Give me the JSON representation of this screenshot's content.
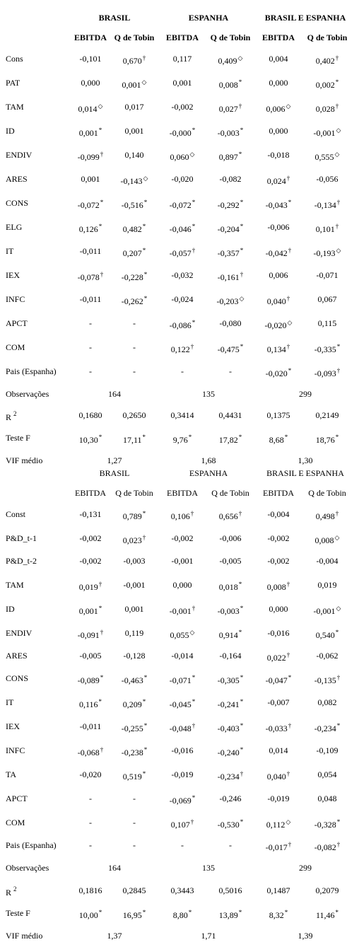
{
  "tables": [
    {
      "id": "t1",
      "bold_header": true,
      "groups": [
        "BRASIL",
        "ESPANHA",
        "BRASIL E ESPANHA"
      ],
      "cols": [
        "EBITDA",
        "Q de Tobin",
        "EBITDA",
        "Q de Tobin",
        "EBITDA",
        "Q de Tobin"
      ],
      "rows": [
        {
          "label": "Cons",
          "cells": [
            [
              "-0,101",
              ""
            ],
            [
              "0,670",
              "†"
            ],
            [
              "0,117",
              ""
            ],
            [
              "0,409",
              "◇"
            ],
            [
              "0,004",
              ""
            ],
            [
              "0,402",
              "†"
            ]
          ]
        },
        {
          "label": "PAT",
          "cells": [
            [
              "0,000",
              ""
            ],
            [
              "0,001",
              "◇"
            ],
            [
              "0,001",
              ""
            ],
            [
              "0,008",
              "*"
            ],
            [
              "0,000",
              ""
            ],
            [
              "0,002",
              "*"
            ]
          ]
        },
        {
          "label": "TAM",
          "cells": [
            [
              "0,014",
              "◇"
            ],
            [
              "0,017",
              ""
            ],
            [
              "-0,002",
              ""
            ],
            [
              "0,027",
              "†"
            ],
            [
              "0,006",
              "◇"
            ],
            [
              "0,028",
              "†"
            ]
          ]
        },
        {
          "label": "ID",
          "cells": [
            [
              "0,001",
              "*"
            ],
            [
              "0,001",
              ""
            ],
            [
              "-0,000",
              "*"
            ],
            [
              "-0,003",
              "*"
            ],
            [
              "0,000",
              ""
            ],
            [
              "-0,001",
              "◇"
            ]
          ]
        },
        {
          "label": "ENDIV",
          "cells": [
            [
              "-0,099",
              "†"
            ],
            [
              "0,140",
              ""
            ],
            [
              "0,060",
              "◇"
            ],
            [
              "0,897",
              "*"
            ],
            [
              "-0,018",
              ""
            ],
            [
              "0,555",
              "◇"
            ]
          ]
        },
        {
          "label": "ARES",
          "cells": [
            [
              "0,001",
              ""
            ],
            [
              "-0,143",
              "◇"
            ],
            [
              "-0,020",
              ""
            ],
            [
              "-0,082",
              ""
            ],
            [
              "0,024",
              "†"
            ],
            [
              "-0,056",
              ""
            ]
          ]
        },
        {
          "label": "CONS",
          "cells": [
            [
              "-0,072",
              "*"
            ],
            [
              "-0,516",
              "*"
            ],
            [
              "-0,072",
              "*"
            ],
            [
              "-0,292",
              "*"
            ],
            [
              "-0,043",
              "*"
            ],
            [
              "-0,134",
              "†"
            ]
          ]
        },
        {
          "label": "ELG",
          "cells": [
            [
              "0,126",
              "*"
            ],
            [
              "0,482",
              "*"
            ],
            [
              "-0,046",
              "*"
            ],
            [
              "-0,204",
              "*"
            ],
            [
              "-0,006",
              ""
            ],
            [
              "0,101",
              "†"
            ]
          ]
        },
        {
          "label": "IT",
          "cells": [
            [
              "-0,011",
              ""
            ],
            [
              "0,207",
              "*"
            ],
            [
              "-0,057",
              "†"
            ],
            [
              "-0,357",
              "*"
            ],
            [
              "-0,042",
              "†"
            ],
            [
              "-0,193",
              "◇"
            ]
          ]
        },
        {
          "label": "IEX",
          "cells": [
            [
              "-0,078",
              "†"
            ],
            [
              "-0,228",
              "*"
            ],
            [
              "-0,032",
              ""
            ],
            [
              "-0,161",
              "†"
            ],
            [
              "0,006",
              ""
            ],
            [
              "-0,071",
              ""
            ]
          ]
        },
        {
          "label": "INFC",
          "cells": [
            [
              "-0,011",
              ""
            ],
            [
              "-0,262",
              "*"
            ],
            [
              "-0,024",
              ""
            ],
            [
              "-0,203",
              "◇"
            ],
            [
              "0,040",
              "†"
            ],
            [
              "0,067",
              ""
            ]
          ]
        },
        {
          "label": "APCT",
          "cells": [
            [
              "-",
              ""
            ],
            [
              "-",
              ""
            ],
            [
              "-0,086",
              "*"
            ],
            [
              "-0,080",
              ""
            ],
            [
              "-0,020",
              "◇"
            ],
            [
              "0,115",
              ""
            ]
          ]
        },
        {
          "label": "COM",
          "cells": [
            [
              "-",
              ""
            ],
            [
              "-",
              ""
            ],
            [
              "0,122",
              "†"
            ],
            [
              "-0,475",
              "*"
            ],
            [
              "0,134",
              "†"
            ],
            [
              "-0,335",
              "*"
            ]
          ]
        },
        {
          "label": "Pais (Espanha)",
          "cells": [
            [
              "-",
              ""
            ],
            [
              "-",
              ""
            ],
            [
              "-",
              ""
            ],
            [
              "-",
              ""
            ],
            [
              "-0,020",
              "*"
            ],
            [
              "-0,093",
              "†"
            ]
          ]
        }
      ],
      "obs": {
        "label": "Observações",
        "values": [
          "164",
          "135",
          "299"
        ]
      },
      "r2": {
        "label": "R",
        "sup": "2",
        "values": [
          "0,1680",
          "0,2650",
          "0,3414",
          "0,4431",
          "0,1375",
          "0,2149"
        ]
      },
      "ftest": {
        "label": "Teste F",
        "cells": [
          [
            "10,30",
            "*"
          ],
          [
            "17,11",
            "*"
          ],
          [
            "9,76",
            "*"
          ],
          [
            "17,82",
            "*"
          ],
          [
            "8,68",
            "*"
          ],
          [
            "18,76",
            "*"
          ]
        ]
      },
      "vif": {
        "label": "VIF médio",
        "values": [
          "1,27",
          "1,68",
          "1,30"
        ]
      }
    },
    {
      "id": "t2",
      "bold_header": false,
      "groups": [
        "BRASIL",
        "ESPANHA",
        "BRASIL E ESPANHA"
      ],
      "cols": [
        "EBITDA",
        "Q de Tobin",
        "EBITDA",
        "Q de Tobin",
        "EBITDA",
        "Q de Tobin"
      ],
      "rows": [
        {
          "label": "Const",
          "cells": [
            [
              "-0,131",
              ""
            ],
            [
              "0,789",
              "*"
            ],
            [
              "0,106",
              "†"
            ],
            [
              "0,656",
              "†"
            ],
            [
              "-0,004",
              ""
            ],
            [
              "0,498",
              "†"
            ]
          ]
        },
        {
          "label": "P&D_t-1",
          "cells": [
            [
              "-0,002",
              ""
            ],
            [
              "0,023",
              "†"
            ],
            [
              "-0,002",
              ""
            ],
            [
              "-0,006",
              ""
            ],
            [
              "-0,002",
              ""
            ],
            [
              "0,008",
              "◇"
            ]
          ]
        },
        {
          "label": "P&D_t-2",
          "cells": [
            [
              "-0,002",
              ""
            ],
            [
              "-0,003",
              ""
            ],
            [
              "-0,001",
              ""
            ],
            [
              "-0,005",
              ""
            ],
            [
              "-0,002",
              ""
            ],
            [
              "-0,004",
              ""
            ]
          ]
        },
        {
          "label": "TAM",
          "cells": [
            [
              "0,019",
              "†"
            ],
            [
              "-0,001",
              ""
            ],
            [
              "0,000",
              ""
            ],
            [
              "0,018",
              "*"
            ],
            [
              "0,008",
              "†"
            ],
            [
              "0,019",
              ""
            ]
          ]
        },
        {
          "label": "ID",
          "cells": [
            [
              "0,001",
              "*"
            ],
            [
              "0,001",
              ""
            ],
            [
              "-0,001",
              "†"
            ],
            [
              "-0,003",
              "*"
            ],
            [
              "0,000",
              ""
            ],
            [
              "-0,001",
              "◇"
            ]
          ]
        },
        {
          "label": "ENDIV",
          "cells": [
            [
              "-0,091",
              "†"
            ],
            [
              "0,119",
              ""
            ],
            [
              "0,055",
              "◇"
            ],
            [
              "0,914",
              "*"
            ],
            [
              "-0,016",
              ""
            ],
            [
              "0,540",
              "*"
            ]
          ]
        },
        {
          "label": "ARES",
          "cells": [
            [
              "-0,005",
              ""
            ],
            [
              "-0,128",
              ""
            ],
            [
              "-0,014",
              ""
            ],
            [
              "-0,164",
              ""
            ],
            [
              "0,022",
              "†"
            ],
            [
              "-0,062",
              ""
            ]
          ]
        },
        {
          "label": "CONS",
          "cells": [
            [
              "-0,089",
              "*"
            ],
            [
              "-0,463",
              "*"
            ],
            [
              "-0,071",
              "*"
            ],
            [
              "-0,305",
              "*"
            ],
            [
              "-0,047",
              "*"
            ],
            [
              "-0,135",
              "†"
            ]
          ]
        },
        {
          "label": "IT",
          "cells": [
            [
              "0,116",
              "*"
            ],
            [
              "0,209",
              "*"
            ],
            [
              "-0,045",
              "*"
            ],
            [
              "-0,241",
              "*"
            ],
            [
              "-0,007",
              ""
            ],
            [
              "0,082",
              ""
            ]
          ]
        },
        {
          "label": "IEX",
          "cells": [
            [
              "-0,011",
              ""
            ],
            [
              "-0,255",
              "*"
            ],
            [
              "-0,048",
              "†"
            ],
            [
              "-0,403",
              "*"
            ],
            [
              "-0,033",
              "†"
            ],
            [
              "-0,234",
              "*"
            ]
          ]
        },
        {
          "label": "INFC",
          "cells": [
            [
              "-0,068",
              "†"
            ],
            [
              "-0,238",
              "*"
            ],
            [
              "-0,016",
              ""
            ],
            [
              "-0,240",
              "*"
            ],
            [
              "0,014",
              ""
            ],
            [
              "-0,109",
              ""
            ]
          ]
        },
        {
          "label": "TA",
          "cells": [
            [
              "-0,020",
              ""
            ],
            [
              "0,519",
              "*"
            ],
            [
              "-0,019",
              ""
            ],
            [
              "-0,234",
              "†"
            ],
            [
              "0,040",
              "†"
            ],
            [
              "0,054",
              ""
            ]
          ]
        },
        {
          "label": "APCT",
          "cells": [
            [
              "-",
              ""
            ],
            [
              "-",
              ""
            ],
            [
              "-0,069",
              "*"
            ],
            [
              "-0,246",
              ""
            ],
            [
              "-0,019",
              ""
            ],
            [
              "0,048",
              ""
            ]
          ]
        },
        {
          "label": "COM",
          "cells": [
            [
              "-",
              ""
            ],
            [
              "-",
              ""
            ],
            [
              "0,107",
              "†"
            ],
            [
              "-0,530",
              "*"
            ],
            [
              "0,112",
              "◇"
            ],
            [
              "-0,328",
              "*"
            ]
          ]
        },
        {
          "label": "Pais (Espanha)",
          "cells": [
            [
              "-",
              ""
            ],
            [
              "-",
              ""
            ],
            [
              "-",
              ""
            ],
            [
              "-",
              ""
            ],
            [
              "-0,017",
              "†"
            ],
            [
              "-0,082",
              "†"
            ]
          ]
        }
      ],
      "obs": {
        "label": "Observações",
        "values": [
          "164",
          "135",
          "299"
        ]
      },
      "r2": {
        "label": "R",
        "sup": "2",
        "values": [
          "0,1816",
          "0,2845",
          "0,3443",
          "0,5016",
          "0,1487",
          "0,2079"
        ]
      },
      "ftest": {
        "label": "Teste F",
        "cells": [
          [
            "10,00",
            "*"
          ],
          [
            "16,95",
            "*"
          ],
          [
            "8,80",
            "*"
          ],
          [
            "13,89",
            "*"
          ],
          [
            "8,32",
            "*"
          ],
          [
            "11,46",
            "*"
          ]
        ]
      },
      "vif": {
        "label": "VIF médio",
        "values": [
          "1,37",
          "1,71",
          "1,39"
        ]
      }
    }
  ]
}
